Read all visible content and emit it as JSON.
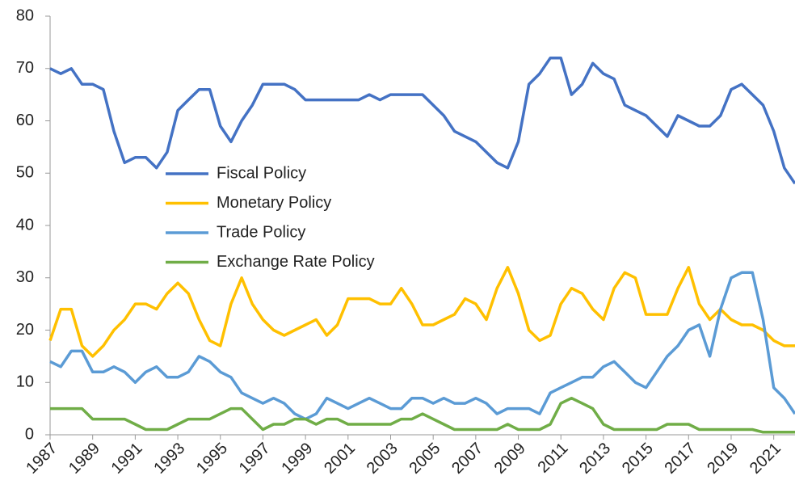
{
  "chart_data": {
    "type": "line",
    "x": [
      1987,
      1987.5,
      1988,
      1988.5,
      1989,
      1989.5,
      1990,
      1990.5,
      1991,
      1991.5,
      1992,
      1992.5,
      1993,
      1993.5,
      1994,
      1994.5,
      1995,
      1995.5,
      1996,
      1996.5,
      1997,
      1997.5,
      1998,
      1998.5,
      1999,
      1999.5,
      2000,
      2000.5,
      2001,
      2001.5,
      2002,
      2002.5,
      2003,
      2003.5,
      2004,
      2004.5,
      2005,
      2005.5,
      2006,
      2006.5,
      2007,
      2007.5,
      2008,
      2008.5,
      2009,
      2009.5,
      2010,
      2010.5,
      2011,
      2011.5,
      2012,
      2012.5,
      2013,
      2013.5,
      2014,
      2014.5,
      2015,
      2015.5,
      2016,
      2016.5,
      2017,
      2017.5,
      2018,
      2018.5,
      2019,
      2019.5,
      2020,
      2020.5,
      2021,
      2021.5,
      2022
    ],
    "series": [
      {
        "name": "Fiscal Policy",
        "color": "#4472c4",
        "values": [
          70,
          69,
          70,
          67,
          67,
          66,
          58,
          52,
          53,
          53,
          51,
          54,
          62,
          64,
          66,
          66,
          59,
          56,
          60,
          63,
          67,
          67,
          67,
          66,
          64,
          64,
          64,
          64,
          64,
          64,
          65,
          64,
          65,
          65,
          65,
          65,
          63,
          61,
          58,
          57,
          56,
          54,
          52,
          51,
          56,
          67,
          69,
          72,
          72,
          65,
          67,
          71,
          69,
          68,
          63,
          62,
          61,
          59,
          57,
          61,
          60,
          59,
          59,
          61,
          66,
          67,
          65,
          63,
          58,
          51,
          48
        ]
      },
      {
        "name": "Monetary Policy",
        "color": "#ffc000",
        "values": [
          18,
          24,
          24,
          17,
          15,
          17,
          20,
          22,
          25,
          25,
          24,
          27,
          29,
          27,
          22,
          18,
          17,
          25,
          30,
          25,
          22,
          20,
          19,
          20,
          21,
          22,
          19,
          21,
          26,
          26,
          26,
          25,
          25,
          28,
          25,
          21,
          21,
          22,
          23,
          26,
          25,
          22,
          28,
          32,
          27,
          20,
          18,
          19,
          25,
          28,
          27,
          24,
          22,
          28,
          31,
          30,
          23,
          23,
          23,
          28,
          32,
          25,
          22,
          24,
          22,
          21,
          21,
          20,
          18,
          17,
          17
        ]
      },
      {
        "name": "Trade Policy",
        "color": "#5b9bd5",
        "values": [
          14,
          13,
          16,
          16,
          12,
          12,
          13,
          12,
          10,
          12,
          13,
          11,
          11,
          12,
          15,
          14,
          12,
          11,
          8,
          7,
          6,
          7,
          6,
          4,
          3,
          4,
          7,
          6,
          5,
          6,
          7,
          6,
          5,
          5,
          7,
          7,
          6,
          7,
          6,
          6,
          7,
          6,
          4,
          5,
          5,
          5,
          4,
          8,
          9,
          10,
          11,
          11,
          13,
          14,
          12,
          10,
          9,
          12,
          15,
          17,
          20,
          21,
          15,
          24,
          30,
          31,
          31,
          22,
          9,
          7,
          4
        ]
      },
      {
        "name": "Exchange Rate Policy",
        "color": "#70ad47",
        "values": [
          5,
          5,
          5,
          5,
          3,
          3,
          3,
          3,
          2,
          1,
          1,
          1,
          2,
          3,
          3,
          3,
          4,
          5,
          5,
          3,
          1,
          2,
          2,
          3,
          3,
          2,
          3,
          3,
          2,
          2,
          2,
          2,
          2,
          3,
          3,
          4,
          3,
          2,
          1,
          1,
          1,
          1,
          1,
          2,
          1,
          1,
          1,
          2,
          6,
          7,
          6,
          5,
          2,
          1,
          1,
          1,
          1,
          1,
          2,
          2,
          2,
          1,
          1,
          1,
          1,
          1,
          1,
          0.5,
          0.5,
          0.5,
          0.5
        ]
      }
    ],
    "xlim": [
      1987,
      2022
    ],
    "xticks": [
      1987,
      1989,
      1991,
      1993,
      1995,
      1997,
      1999,
      2001,
      2003,
      2005,
      2007,
      2009,
      2011,
      2013,
      2015,
      2017,
      2019,
      2021
    ],
    "ylim": [
      0,
      80
    ],
    "yticks": [
      0,
      10,
      20,
      30,
      40,
      50,
      60,
      70,
      80
    ],
    "grid": false,
    "legend": "center-left"
  }
}
